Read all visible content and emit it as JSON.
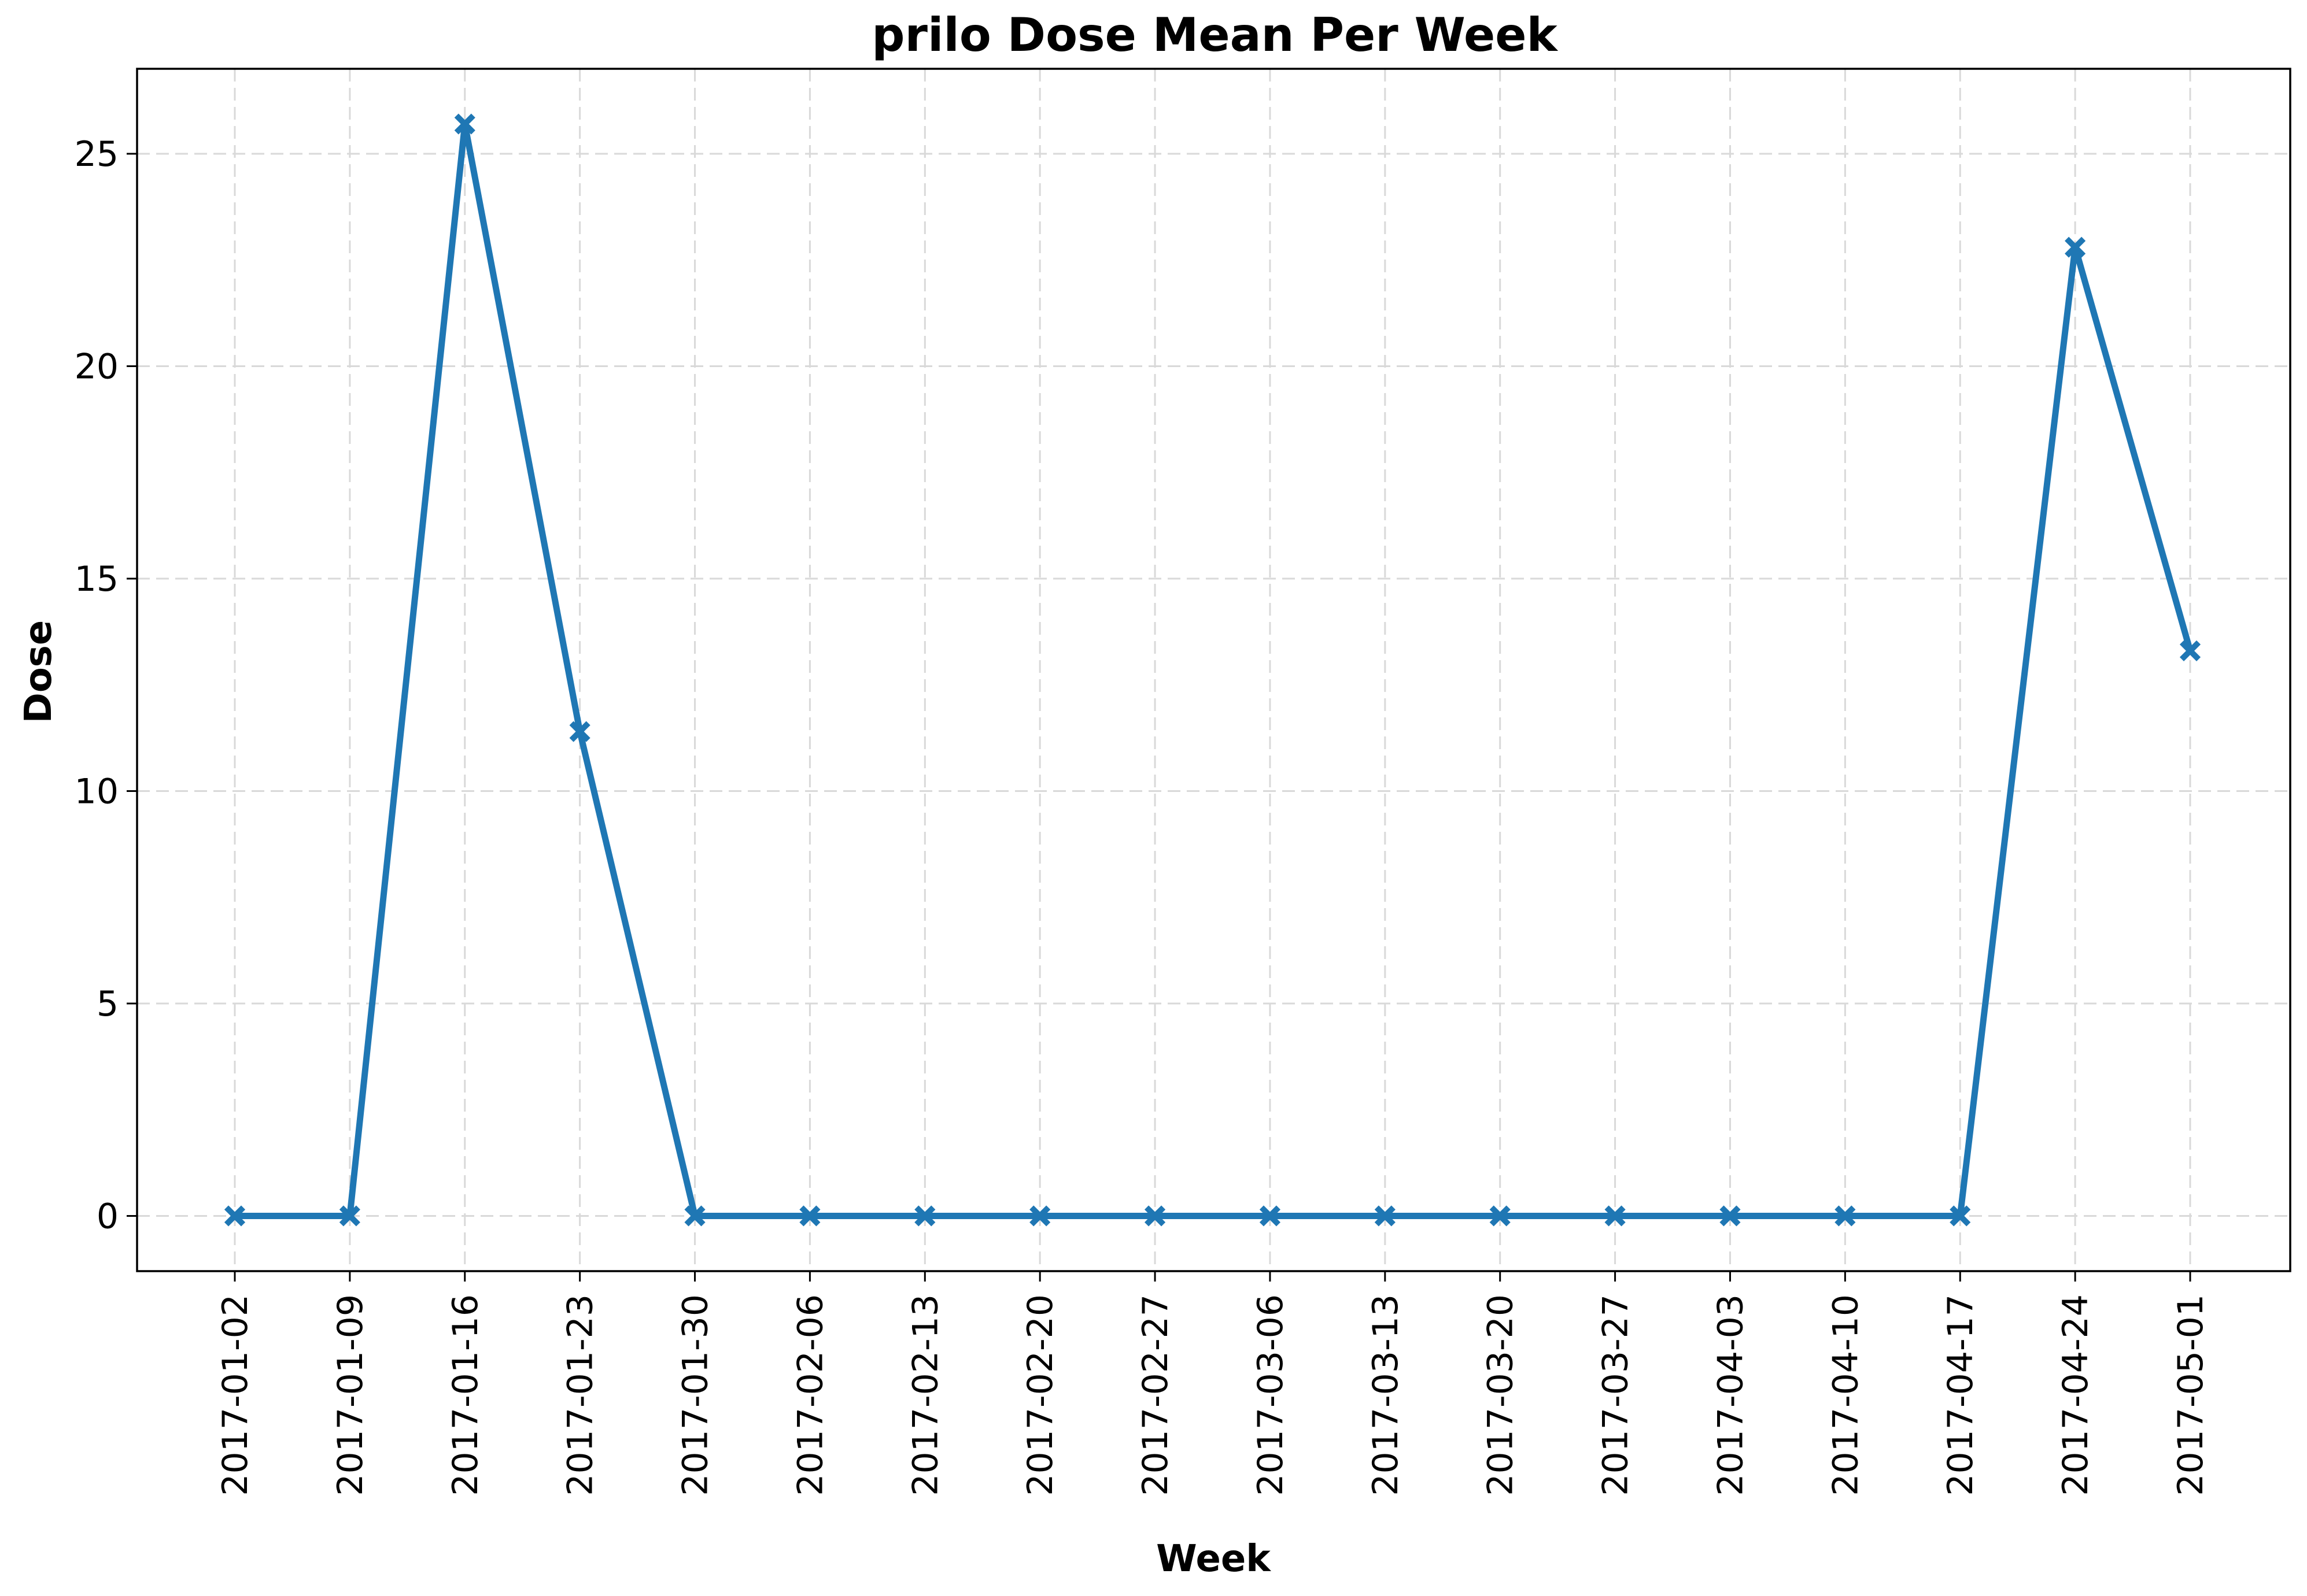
{
  "chart_data": {
    "type": "line",
    "title": "prilo Dose Mean Per Week",
    "xlabel": "Week",
    "ylabel": "Dose",
    "categories": [
      "2017-01-02",
      "2017-01-09",
      "2017-01-16",
      "2017-01-23",
      "2017-01-30",
      "2017-02-06",
      "2017-02-13",
      "2017-02-20",
      "2017-02-27",
      "2017-03-06",
      "2017-03-13",
      "2017-03-20",
      "2017-03-27",
      "2017-04-03",
      "2017-04-10",
      "2017-04-17",
      "2017-04-24",
      "2017-05-01"
    ],
    "series": [
      {
        "values": [
          0,
          0,
          25.7,
          11.4,
          0,
          0,
          0,
          0,
          0,
          0,
          0,
          0,
          0,
          0,
          0,
          0,
          22.8,
          13.3
        ],
        "color": "#1f77b4",
        "marker": "x-filled"
      }
    ],
    "yticks": [
      0,
      5,
      10,
      15,
      20,
      25
    ],
    "ylim": [
      -1.3,
      27.0
    ],
    "grid": true
  }
}
